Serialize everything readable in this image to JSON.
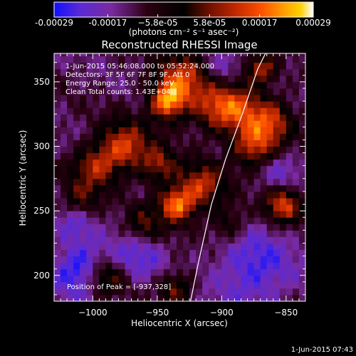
{
  "chart_data": {
    "type": "heatmap",
    "title": "Reconstructed RHESSI Image",
    "xlabel": "Heliocentric X (arcsec)",
    "ylabel": "Heliocentric Y (arcsec)",
    "xlim": [
      -1030,
      -835
    ],
    "ylim": [
      180,
      372
    ],
    "xticks": [
      -1000,
      -950,
      -900,
      -850
    ],
    "xtick_labels": [
      "−1000",
      "−950",
      "−900",
      "−850"
    ],
    "yticks": [
      200,
      250,
      300,
      350
    ],
    "ytick_labels": [
      "200",
      "250",
      "300",
      "350"
    ],
    "colorbar": {
      "ticks": [
        -0.00029,
        -0.00017,
        -5.8e-05,
        5.8e-05,
        0.00017,
        0.00029
      ],
      "tick_labels": [
        "-0.00029",
        "-0.00017",
        "−5.8e-05",
        "5.8e-05",
        "0.00017",
        "0.00029"
      ],
      "unit_label": "(photons cm⁻² s⁻¹ asec⁻²)",
      "colormap": [
        "#1010ff",
        "#5a2ad6",
        "#7a2aa0",
        "#2a0010",
        "#000000",
        "#701000",
        "#c02800",
        "#ff5000",
        "#ff9a00",
        "#ffd000",
        "#ffffff"
      ]
    },
    "annotations": [
      "1-Jun-2015 05:46:08.000 to 05:52:24.000",
      "Detectors: 3F 5F 6F 7F 8F 9F, Att 0",
      "Energy Range: 25.0 - 50.0 keV",
      "Clean    Total counts: 1.43E+04"
    ],
    "peak_label": "Position of Peak = [-937,328]",
    "limb_curve": [
      [
        -925,
        176
      ],
      [
        -918,
        210
      ],
      [
        -908,
        255
      ],
      [
        -897,
        290
      ],
      [
        -884,
        325
      ],
      [
        -872,
        360
      ],
      [
        -866,
        372
      ]
    ]
  },
  "footer": {
    "timestamp": "1-Jun-2015 07:43"
  }
}
